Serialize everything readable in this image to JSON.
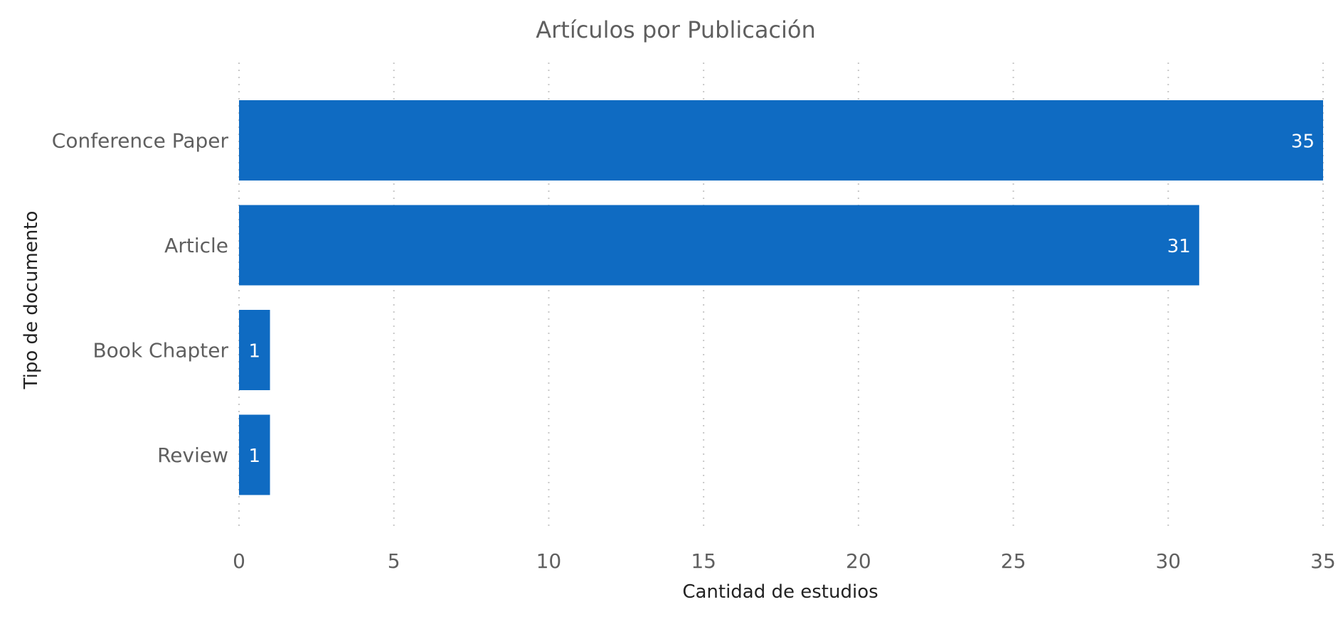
{
  "chart_data": {
    "type": "bar",
    "orientation": "horizontal",
    "title": "Artículos por Publicación",
    "xlabel": "Cantidad de estudios",
    "ylabel": "Tipo de documento",
    "categories": [
      "Conference Paper",
      "Article",
      "Book Chapter",
      "Review"
    ],
    "values": [
      35,
      31,
      1,
      1
    ],
    "data_labels": [
      "35",
      "31",
      "1",
      "1"
    ],
    "xlim": [
      0,
      35
    ],
    "xticks": [
      0,
      5,
      10,
      15,
      20,
      25,
      30,
      35
    ],
    "xtick_labels": [
      "0",
      "5",
      "10",
      "15",
      "20",
      "25",
      "30",
      "35"
    ],
    "grid": true,
    "legend": "none",
    "colors": {
      "bar": "#0f6bc2",
      "grid": "#c8c8c8",
      "title": "#5f5f5f",
      "axis_title": "#222222",
      "labels": "#5f5f5f",
      "data_label": "#ffffff"
    }
  }
}
